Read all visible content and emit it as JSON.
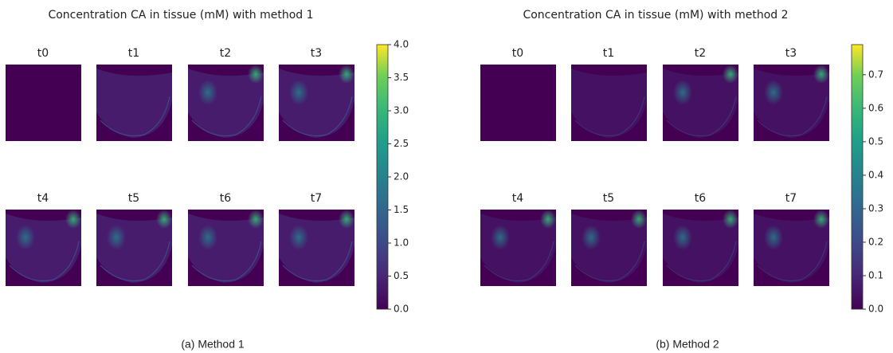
{
  "chart_data": [
    {
      "type": "image-grid",
      "title": "Concentration CA in tissue (mM) with method 1",
      "panels": [
        "t0",
        "t1",
        "t2",
        "t3",
        "t4",
        "t5",
        "t6",
        "t7"
      ],
      "caption": "(a) Method 1",
      "ylim": [
        0,
        4
      ],
      "yticks": [
        {
          "value": 0,
          "label": "0.0"
        },
        {
          "value": 0.5,
          "label": "0.5"
        },
        {
          "value": 1,
          "label": "1.0"
        },
        {
          "value": 1.5,
          "label": "1.5"
        },
        {
          "value": 2,
          "label": "2.0"
        },
        {
          "value": 2.5,
          "label": "2.5"
        },
        {
          "value": 3,
          "label": "3.0"
        },
        {
          "value": 3.5,
          "label": "3.5"
        },
        {
          "value": 4,
          "label": "4.0"
        }
      ]
    },
    {
      "type": "image-grid",
      "title": "Concentration CA in tissue (mM) with method 2",
      "panels": [
        "t0",
        "t1",
        "t2",
        "t3",
        "t4",
        "t5",
        "t6",
        "t7"
      ],
      "caption": "(b) Method 2",
      "ylim": [
        0,
        0.79
      ],
      "yticks": [
        {
          "value": 0,
          "label": "0.0"
        },
        0.1,
        0.2,
        0.3,
        0.4,
        0.5,
        0.6,
        0.7
      ]
    }
  ]
}
